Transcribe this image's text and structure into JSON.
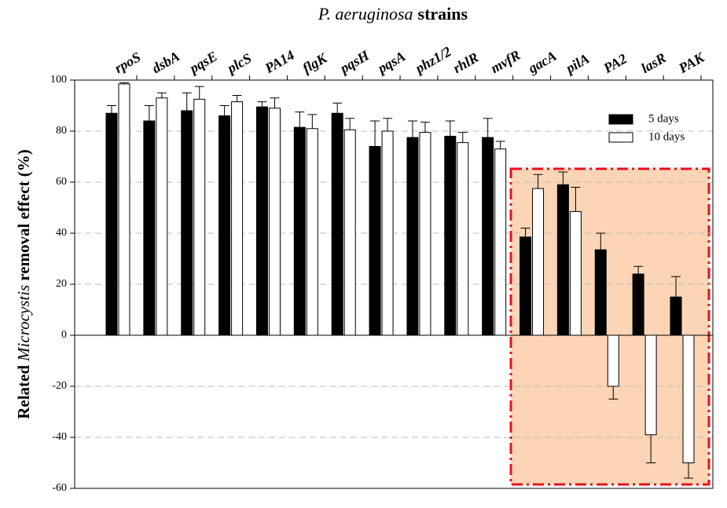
{
  "chart_data": {
    "type": "bar",
    "title": [
      "P. aeruginosa",
      "strains"
    ],
    "ylabel": [
      "Related",
      "Microcystis",
      "removal effect (%)"
    ],
    "categories": [
      "rpoS",
      "dsbA",
      "pqsE",
      "plcS",
      "PA14",
      "flgK",
      "pqsH",
      "pqsA",
      "phz1/2",
      "rhlR",
      "mvfR",
      "gacA",
      "pilA",
      "PA2",
      "lasR",
      "PAK"
    ],
    "series": [
      {
        "name": "5 days",
        "color": "#000000",
        "values": [
          87,
          84,
          88,
          86,
          89.5,
          81.5,
          87,
          74,
          77.5,
          78,
          77.5,
          38.5,
          59,
          33.5,
          24,
          15
        ],
        "errors": [
          3,
          6,
          7,
          4,
          2,
          6,
          4,
          10,
          6.5,
          6,
          7.5,
          3.5,
          5,
          6.5,
          3,
          8
        ]
      },
      {
        "name": "10 days",
        "color": "#ffffff",
        "values": [
          98.5,
          93,
          92.5,
          91.5,
          89,
          81,
          80.5,
          80,
          79.5,
          75.5,
          73,
          57.5,
          48.5,
          -20,
          -39,
          -50
        ],
        "errors": [
          0.5,
          2,
          5,
          2.5,
          4,
          5.5,
          4.5,
          5,
          4,
          4,
          3,
          5.5,
          9.5,
          5,
          11,
          6
        ]
      }
    ],
    "ylim": [
      -60,
      100
    ],
    "yticks": [
      -60,
      -40,
      -20,
      0,
      20,
      40,
      60,
      80,
      100
    ],
    "grid": true,
    "legend": "upper right"
  }
}
